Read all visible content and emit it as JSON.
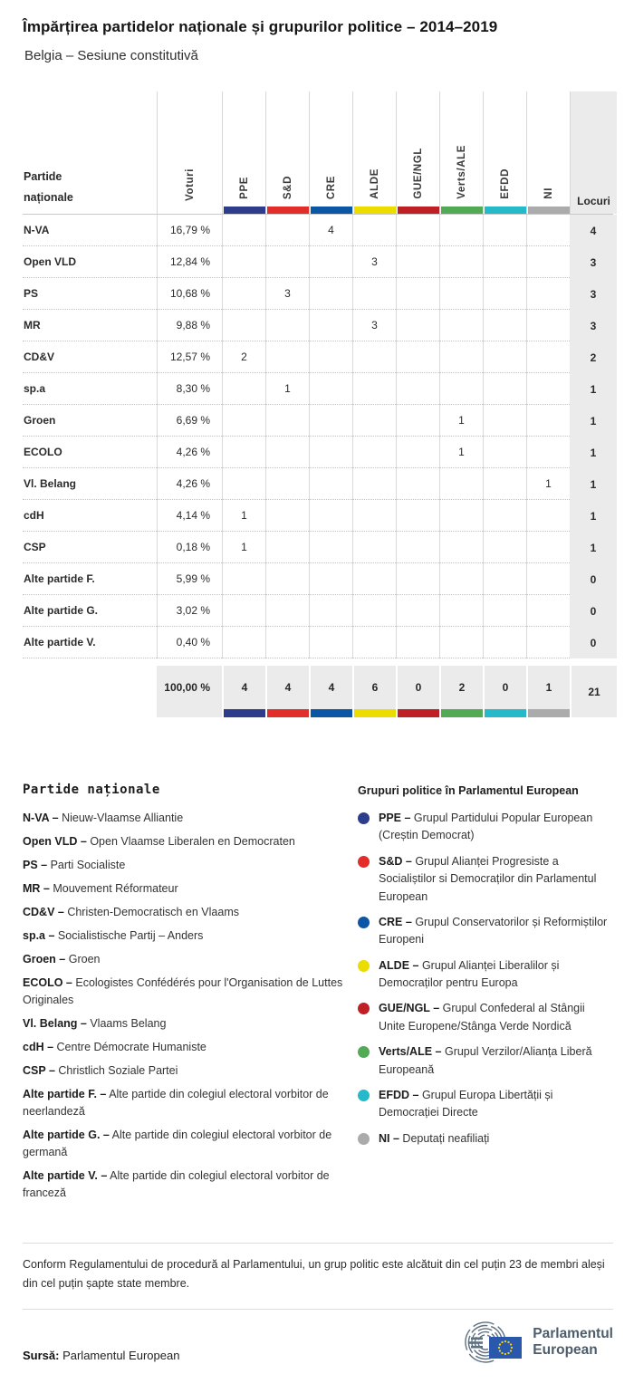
{
  "header": {
    "title": "Împărțirea partidelor naționale și grupurilor politice – 2014–2019",
    "subtitle": "Belgia – Sesiune constitutivă"
  },
  "table": {
    "corner_line1": "Partide",
    "corner_line2": "naționale",
    "votes_header": "Voturi",
    "seats_header": "Locuri",
    "groups": [
      {
        "label": "PPE",
        "color": "#2d3c8b"
      },
      {
        "label": "S&D",
        "color": "#e22e2b"
      },
      {
        "label": "CRE",
        "color": "#0b57a6"
      },
      {
        "label": "ALDE",
        "color": "#ecdc00"
      },
      {
        "label": "GUE/NGL",
        "color": "#bf2026"
      },
      {
        "label": "Verts/ALE",
        "color": "#52aa54"
      },
      {
        "label": "EFDD",
        "color": "#25b9c9"
      },
      {
        "label": "NI",
        "color": "#ababab"
      }
    ],
    "rows": [
      {
        "party": "N-VA",
        "votes": "16,79 %",
        "seats": [
          "",
          "",
          "4",
          "",
          "",
          "",
          "",
          ""
        ],
        "total": "4"
      },
      {
        "party": "Open VLD",
        "votes": "12,84 %",
        "seats": [
          "",
          "",
          "",
          "3",
          "",
          "",
          "",
          ""
        ],
        "total": "3"
      },
      {
        "party": "PS",
        "votes": "10,68 %",
        "seats": [
          "",
          "3",
          "",
          "",
          "",
          "",
          "",
          ""
        ],
        "total": "3"
      },
      {
        "party": "MR",
        "votes": "9,88 %",
        "seats": [
          "",
          "",
          "",
          "3",
          "",
          "",
          "",
          ""
        ],
        "total": "3"
      },
      {
        "party": "CD&V",
        "votes": "12,57 %",
        "seats": [
          "2",
          "",
          "",
          "",
          "",
          "",
          "",
          ""
        ],
        "total": "2"
      },
      {
        "party": "sp.a",
        "votes": "8,30 %",
        "seats": [
          "",
          "1",
          "",
          "",
          "",
          "",
          "",
          ""
        ],
        "total": "1"
      },
      {
        "party": "Groen",
        "votes": "6,69 %",
        "seats": [
          "",
          "",
          "",
          "",
          "",
          "1",
          "",
          ""
        ],
        "total": "1"
      },
      {
        "party": "ECOLO",
        "votes": "4,26 %",
        "seats": [
          "",
          "",
          "",
          "",
          "",
          "1",
          "",
          ""
        ],
        "total": "1"
      },
      {
        "party": "Vl. Belang",
        "votes": "4,26 %",
        "seats": [
          "",
          "",
          "",
          "",
          "",
          "",
          "",
          "1"
        ],
        "total": "1"
      },
      {
        "party": "cdH",
        "votes": "4,14 %",
        "seats": [
          "1",
          "",
          "",
          "",
          "",
          "",
          "",
          ""
        ],
        "total": "1"
      },
      {
        "party": "CSP",
        "votes": "0,18 %",
        "seats": [
          "1",
          "",
          "",
          "",
          "",
          "",
          "",
          ""
        ],
        "total": "1"
      },
      {
        "party": "Alte partide F.",
        "votes": "5,99 %",
        "seats": [
          "",
          "",
          "",
          "",
          "",
          "",
          "",
          ""
        ],
        "total": "0"
      },
      {
        "party": "Alte partide G.",
        "votes": "3,02 %",
        "seats": [
          "",
          "",
          "",
          "",
          "",
          "",
          "",
          ""
        ],
        "total": "0"
      },
      {
        "party": "Alte partide V.",
        "votes": "0,40 %",
        "seats": [
          "",
          "",
          "",
          "",
          "",
          "",
          "",
          ""
        ],
        "total": "0"
      }
    ],
    "totals": {
      "votes": "100,00 %",
      "seats": [
        "4",
        "4",
        "4",
        "6",
        "0",
        "2",
        "0",
        "1"
      ],
      "total": "21"
    }
  },
  "chart_data": {
    "type": "table",
    "title": "Împărțirea partidelor naționale și grupurilor politice – 2014–2019",
    "subtitle": "Belgia – Sesiune constitutivă",
    "categories": [
      "PPE",
      "S&D",
      "CRE",
      "ALDE",
      "GUE/NGL",
      "Verts/ALE",
      "EFDD",
      "NI"
    ],
    "group_totals": [
      4,
      4,
      4,
      6,
      0,
      2,
      0,
      1
    ],
    "total_seats": 21,
    "series": [
      {
        "name": "N-VA",
        "votes_pct": 16.79,
        "group": "CRE",
        "seats": 4
      },
      {
        "name": "Open VLD",
        "votes_pct": 12.84,
        "group": "ALDE",
        "seats": 3
      },
      {
        "name": "PS",
        "votes_pct": 10.68,
        "group": "S&D",
        "seats": 3
      },
      {
        "name": "MR",
        "votes_pct": 9.88,
        "group": "ALDE",
        "seats": 3
      },
      {
        "name": "CD&V",
        "votes_pct": 12.57,
        "group": "PPE",
        "seats": 2
      },
      {
        "name": "sp.a",
        "votes_pct": 8.3,
        "group": "S&D",
        "seats": 1
      },
      {
        "name": "Groen",
        "votes_pct": 6.69,
        "group": "Verts/ALE",
        "seats": 1
      },
      {
        "name": "ECOLO",
        "votes_pct": 4.26,
        "group": "Verts/ALE",
        "seats": 1
      },
      {
        "name": "Vl. Belang",
        "votes_pct": 4.26,
        "group": "NI",
        "seats": 1
      },
      {
        "name": "cdH",
        "votes_pct": 4.14,
        "group": "PPE",
        "seats": 1
      },
      {
        "name": "CSP",
        "votes_pct": 0.18,
        "group": "PPE",
        "seats": 1
      },
      {
        "name": "Alte partide F.",
        "votes_pct": 5.99,
        "group": null,
        "seats": 0
      },
      {
        "name": "Alte partide G.",
        "votes_pct": 3.02,
        "group": null,
        "seats": 0
      },
      {
        "name": "Alte partide V.",
        "votes_pct": 0.4,
        "group": null,
        "seats": 0
      }
    ]
  },
  "party_legend": {
    "title": "Partide naționale",
    "items": [
      {
        "abbr": "N-VA –",
        "name": "Nieuw-Vlaamse Alliantie"
      },
      {
        "abbr": "Open VLD –",
        "name": "Open Vlaamse Liberalen en Democraten"
      },
      {
        "abbr": "PS –",
        "name": "Parti Socialiste"
      },
      {
        "abbr": "MR –",
        "name": "Mouvement Réformateur"
      },
      {
        "abbr": "CD&V –",
        "name": "Christen-Democratisch en Vlaams"
      },
      {
        "abbr": "sp.a –",
        "name": "Socialistische Partij – Anders"
      },
      {
        "abbr": "Groen –",
        "name": "Groen"
      },
      {
        "abbr": "ECOLO –",
        "name": "Ecologistes Confédérés pour l'Organisation de Luttes Originales"
      },
      {
        "abbr": "Vl. Belang –",
        "name": "Vlaams Belang"
      },
      {
        "abbr": "cdH –",
        "name": "Centre Démocrate Humaniste"
      },
      {
        "abbr": "CSP –",
        "name": "Christlich Soziale Partei"
      },
      {
        "abbr": "Alte partide F. –",
        "name": "Alte partide din colegiul electoral vorbitor de neerlandeză"
      },
      {
        "abbr": "Alte partide G. –",
        "name": "Alte partide din colegiul electoral vorbitor de germană"
      },
      {
        "abbr": "Alte partide V. –",
        "name": "Alte partide din colegiul electoral vorbitor de franceză"
      }
    ]
  },
  "group_legend": {
    "title": "Grupuri politice în Parlamentul European",
    "items": [
      {
        "abbr": "PPE –",
        "desc": "Grupul Partidului Popular European (Creștin Democrat)",
        "color": "#2d3c8b"
      },
      {
        "abbr": "S&D –",
        "desc": "Grupul Alianței Progresiste a Socialiștilor si Democraților din Parlamentul European",
        "color": "#e22e2b"
      },
      {
        "abbr": "CRE –",
        "desc": "Grupul Conservatorilor și Reformiștilor Europeni",
        "color": "#0b57a6"
      },
      {
        "abbr": "ALDE –",
        "desc": "Grupul Alianței Liberalilor și Democraților pentru Europa",
        "color": "#ecdc00"
      },
      {
        "abbr": "GUE/NGL –",
        "desc": "Grupul Confederal al Stângii Unite Europene/Stânga Verde Nordică",
        "color": "#bf2026"
      },
      {
        "abbr": "Verts/ALE –",
        "desc": "Grupul Verzilor/Alianța Liberă Europeană",
        "color": "#52aa54"
      },
      {
        "abbr": "EFDD –",
        "desc": "Grupul Europa Libertății și Democrației Directe",
        "color": "#25b9c9"
      },
      {
        "abbr": "NI –",
        "desc": "Deputați neafiliați",
        "color": "#ababab"
      }
    ]
  },
  "footer": {
    "footnote": "Conform Regulamentului de procedură al Parlamentului, un grup politic este alcătuit din cel puțin 23 de membri aleși din cel puțin șapte state membre.",
    "source_label": "Sursă:",
    "source_value": " Parlamentul European",
    "logo_line1": "Parlamentul",
    "logo_line2": "European"
  }
}
